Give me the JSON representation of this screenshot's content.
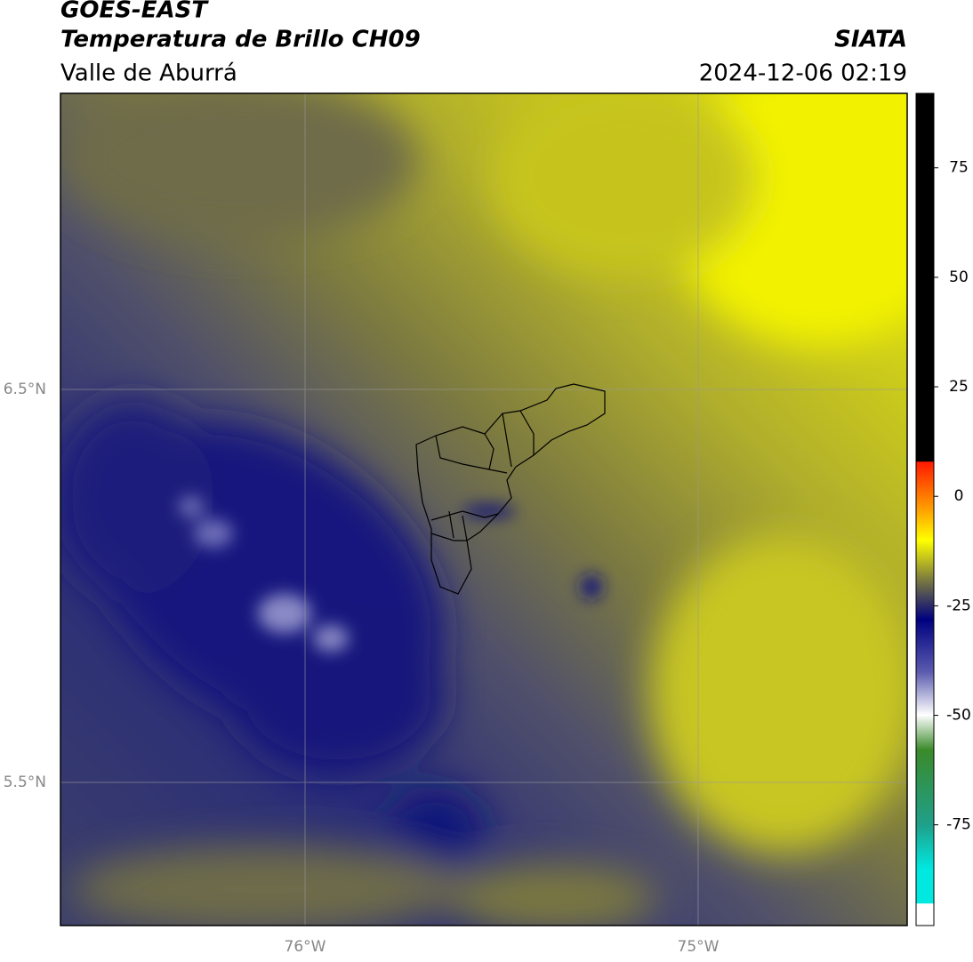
{
  "header": {
    "title": "GOES-EAST",
    "subtitle": "Temperatura de Brillo CH09",
    "region": "Valle de Aburrá",
    "source": "SIATA",
    "datetime": "2024-12-06 02:19"
  },
  "map": {
    "lat_labels": [
      "6.5°N",
      "5.5°N"
    ],
    "lon_labels": [
      "76°W",
      "75°W"
    ]
  },
  "colorbar": {
    "range": [
      -98,
      92
    ],
    "ticks": [
      75,
      50,
      25,
      0,
      -25,
      -50,
      -75
    ]
  }
}
